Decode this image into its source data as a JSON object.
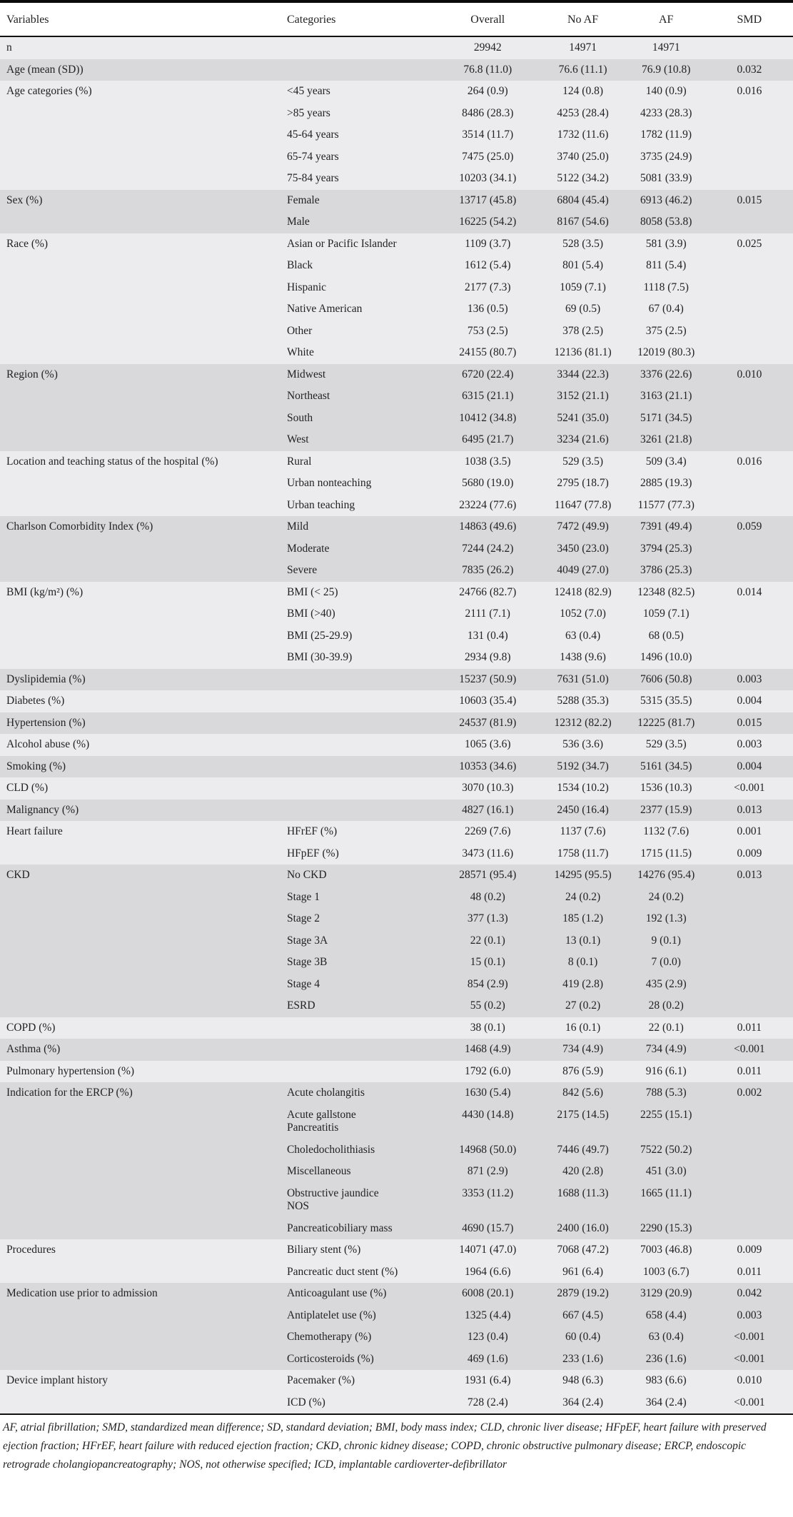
{
  "colors": {
    "row_light": "#ececee",
    "row_dark": "#d9d9db",
    "rule": "#111111",
    "text": "#222222"
  },
  "table": {
    "columns": [
      "Variables",
      "Categories",
      "Overall",
      "No AF",
      "AF",
      "SMD"
    ],
    "groups": [
      {
        "variable": "n",
        "rows": [
          {
            "category": "",
            "overall": "29942",
            "no_af": "14971",
            "af": "14971",
            "smd": ""
          }
        ]
      },
      {
        "variable": "Age (mean (SD))",
        "rows": [
          {
            "category": "",
            "overall": "76.8 (11.0)",
            "no_af": "76.6 (11.1)",
            "af": "76.9 (10.8)",
            "smd": "0.032"
          }
        ]
      },
      {
        "variable": "Age categories (%)",
        "rows": [
          {
            "category": "<45 years",
            "overall": "264 (0.9)",
            "no_af": "124 (0.8)",
            "af": "140 (0.9)",
            "smd": "0.016"
          },
          {
            "category": ">85 years",
            "overall": "8486 (28.3)",
            "no_af": "4253 (28.4)",
            "af": "4233 (28.3)",
            "smd": ""
          },
          {
            "category": "45-64 years",
            "overall": "3514 (11.7)",
            "no_af": "1732 (11.6)",
            "af": "1782 (11.9)",
            "smd": ""
          },
          {
            "category": "65-74 years",
            "overall": "7475 (25.0)",
            "no_af": "3740 (25.0)",
            "af": "3735 (24.9)",
            "smd": ""
          },
          {
            "category": "75-84 years",
            "overall": "10203 (34.1)",
            "no_af": "5122 (34.2)",
            "af": "5081 (33.9)",
            "smd": ""
          }
        ]
      },
      {
        "variable": "Sex (%)",
        "rows": [
          {
            "category": "Female",
            "overall": "13717 (45.8)",
            "no_af": "6804 (45.4)",
            "af": "6913 (46.2)",
            "smd": "0.015"
          },
          {
            "category": "Male",
            "overall": "16225 (54.2)",
            "no_af": "8167 (54.6)",
            "af": "8058 (53.8)",
            "smd": ""
          }
        ]
      },
      {
        "variable": "Race (%)",
        "rows": [
          {
            "category": "Asian or Pacific Islander",
            "overall": "1109 (3.7)",
            "no_af": "528 (3.5)",
            "af": "581 (3.9)",
            "smd": "0.025"
          },
          {
            "category": "Black",
            "overall": "1612 (5.4)",
            "no_af": "801 (5.4)",
            "af": "811 (5.4)",
            "smd": ""
          },
          {
            "category": "Hispanic",
            "overall": "2177 (7.3)",
            "no_af": "1059 (7.1)",
            "af": "1118 (7.5)",
            "smd": ""
          },
          {
            "category": "Native American",
            "overall": "136 (0.5)",
            "no_af": "69 (0.5)",
            "af": "67 (0.4)",
            "smd": ""
          },
          {
            "category": "Other",
            "overall": "753 (2.5)",
            "no_af": "378 (2.5)",
            "af": "375 (2.5)",
            "smd": ""
          },
          {
            "category": "White",
            "overall": "24155 (80.7)",
            "no_af": "12136 (81.1)",
            "af": "12019 (80.3)",
            "smd": ""
          }
        ]
      },
      {
        "variable": "Region (%)",
        "rows": [
          {
            "category": "Midwest",
            "overall": "6720 (22.4)",
            "no_af": "3344 (22.3)",
            "af": "3376 (22.6)",
            "smd": "0.010"
          },
          {
            "category": "Northeast",
            "overall": "6315 (21.1)",
            "no_af": "3152 (21.1)",
            "af": "3163 (21.1)",
            "smd": ""
          },
          {
            "category": "South",
            "overall": "10412 (34.8)",
            "no_af": "5241 (35.0)",
            "af": "5171 (34.5)",
            "smd": ""
          },
          {
            "category": "West",
            "overall": "6495 (21.7)",
            "no_af": "3234 (21.6)",
            "af": "3261 (21.8)",
            "smd": ""
          }
        ]
      },
      {
        "variable": "Location and teaching status of the hospital (%)",
        "rows": [
          {
            "category": "Rural",
            "overall": "1038 (3.5)",
            "no_af": "529 (3.5)",
            "af": "509 (3.4)",
            "smd": "0.016"
          },
          {
            "category": "Urban nonteaching",
            "overall": "5680 (19.0)",
            "no_af": "2795 (18.7)",
            "af": "2885 (19.3)",
            "smd": ""
          },
          {
            "category": "Urban teaching",
            "overall": "23224 (77.6)",
            "no_af": "11647 (77.8)",
            "af": "11577 (77.3)",
            "smd": ""
          }
        ]
      },
      {
        "variable": "Charlson Comorbidity Index (%)",
        "rows": [
          {
            "category": "Mild",
            "overall": "14863 (49.6)",
            "no_af": "7472 (49.9)",
            "af": "7391 (49.4)",
            "smd": "0.059"
          },
          {
            "category": "Moderate",
            "overall": "7244 (24.2)",
            "no_af": "3450 (23.0)",
            "af": "3794 (25.3)",
            "smd": ""
          },
          {
            "category": "Severe",
            "overall": "7835 (26.2)",
            "no_af": "4049 (27.0)",
            "af": "3786 (25.3)",
            "smd": ""
          }
        ]
      },
      {
        "variable": "BMI (kg/m²) (%)",
        "rows": [
          {
            "category": "BMI (< 25)",
            "overall": "24766 (82.7)",
            "no_af": "12418 (82.9)",
            "af": "12348 (82.5)",
            "smd": "0.014"
          },
          {
            "category": "BMI (>40)",
            "overall": "2111 (7.1)",
            "no_af": "1052 (7.0)",
            "af": "1059 (7.1)",
            "smd": ""
          },
          {
            "category": "BMI (25-29.9)",
            "overall": "131 (0.4)",
            "no_af": "63 (0.4)",
            "af": "68 (0.5)",
            "smd": ""
          },
          {
            "category": "BMI (30-39.9)",
            "overall": "2934 (9.8)",
            "no_af": "1438 (9.6)",
            "af": "1496 (10.0)",
            "smd": ""
          }
        ]
      },
      {
        "variable": "Dyslipidemia (%)",
        "rows": [
          {
            "category": "",
            "overall": "15237 (50.9)",
            "no_af": "7631 (51.0)",
            "af": "7606 (50.8)",
            "smd": "0.003"
          }
        ]
      },
      {
        "variable": "Diabetes (%)",
        "rows": [
          {
            "category": "",
            "overall": "10603 (35.4)",
            "no_af": "5288 (35.3)",
            "af": "5315 (35.5)",
            "smd": "0.004"
          }
        ]
      },
      {
        "variable": "Hypertension (%)",
        "rows": [
          {
            "category": "",
            "overall": "24537 (81.9)",
            "no_af": "12312 (82.2)",
            "af": "12225 (81.7)",
            "smd": "0.015"
          }
        ]
      },
      {
        "variable": "Alcohol abuse (%)",
        "rows": [
          {
            "category": "",
            "overall": "1065 (3.6)",
            "no_af": "536 (3.6)",
            "af": "529 (3.5)",
            "smd": "0.003"
          }
        ]
      },
      {
        "variable": "Smoking (%)",
        "rows": [
          {
            "category": "",
            "overall": "10353 (34.6)",
            "no_af": "5192 (34.7)",
            "af": "5161 (34.5)",
            "smd": "0.004"
          }
        ]
      },
      {
        "variable": "CLD (%)",
        "rows": [
          {
            "category": "",
            "overall": "3070 (10.3)",
            "no_af": "1534 (10.2)",
            "af": "1536 (10.3)",
            "smd": "<0.001"
          }
        ]
      },
      {
        "variable": "Malignancy (%)",
        "rows": [
          {
            "category": "",
            "overall": "4827 (16.1)",
            "no_af": "2450 (16.4)",
            "af": "2377 (15.9)",
            "smd": "0.013"
          }
        ]
      },
      {
        "variable": "Heart failure",
        "rows": [
          {
            "category": "HFrEF (%)",
            "overall": "2269 (7.6)",
            "no_af": "1137 (7.6)",
            "af": "1132 (7.6)",
            "smd": "0.001"
          },
          {
            "category": "HFpEF (%)",
            "overall": "3473 (11.6)",
            "no_af": "1758 (11.7)",
            "af": "1715 (11.5)",
            "smd": "0.009"
          }
        ]
      },
      {
        "variable": "CKD",
        "rows": [
          {
            "category": "No CKD",
            "overall": "28571 (95.4)",
            "no_af": "14295 (95.5)",
            "af": "14276 (95.4)",
            "smd": "0.013"
          },
          {
            "category": "Stage 1",
            "overall": "48 (0.2)",
            "no_af": "24 (0.2)",
            "af": "24 (0.2)",
            "smd": ""
          },
          {
            "category": "Stage 2",
            "overall": "377 (1.3)",
            "no_af": "185 (1.2)",
            "af": "192 (1.3)",
            "smd": ""
          },
          {
            "category": "Stage 3A",
            "overall": "22 (0.1)",
            "no_af": "13 (0.1)",
            "af": "9 (0.1)",
            "smd": ""
          },
          {
            "category": "Stage 3B",
            "overall": "15 (0.1)",
            "no_af": "8 (0.1)",
            "af": "7 (0.0)",
            "smd": ""
          },
          {
            "category": "Stage 4",
            "overall": "854 (2.9)",
            "no_af": "419 (2.8)",
            "af": "435 (2.9)",
            "smd": ""
          },
          {
            "category": "ESRD",
            "overall": "55 (0.2)",
            "no_af": "27 (0.2)",
            "af": "28 (0.2)",
            "smd": ""
          }
        ]
      },
      {
        "variable": "COPD (%)",
        "rows": [
          {
            "category": "",
            "overall": "38 (0.1)",
            "no_af": "16 (0.1)",
            "af": "22 (0.1)",
            "smd": "0.011"
          }
        ]
      },
      {
        "variable": "Asthma (%)",
        "rows": [
          {
            "category": "",
            "overall": "1468 (4.9)",
            "no_af": "734 (4.9)",
            "af": "734 (4.9)",
            "smd": "<0.001"
          }
        ]
      },
      {
        "variable": "Pulmonary hypertension (%)",
        "rows": [
          {
            "category": "",
            "overall": "1792 (6.0)",
            "no_af": "876 (5.9)",
            "af": "916 (6.1)",
            "smd": "0.011"
          }
        ]
      },
      {
        "variable": "Indication for the ERCP (%)",
        "rows": [
          {
            "category": "Acute cholangitis",
            "overall": "1630 (5.4)",
            "no_af": "842 (5.6)",
            "af": "788 (5.3)",
            "smd": "0.002"
          },
          {
            "category": "Acute gallstone\nPancreatitis",
            "overall": "4430 (14.8)",
            "no_af": "2175 (14.5)",
            "af": "2255 (15.1)",
            "smd": ""
          },
          {
            "category": "Choledocholithiasis",
            "overall": "14968 (50.0)",
            "no_af": "7446 (49.7)",
            "af": "7522 (50.2)",
            "smd": ""
          },
          {
            "category": "Miscellaneous",
            "overall": "871 (2.9)",
            "no_af": "420 (2.8)",
            "af": "451 (3.0)",
            "smd": ""
          },
          {
            "category": "Obstructive jaundice\nNOS",
            "overall": "3353 (11.2)",
            "no_af": "1688 (11.3)",
            "af": "1665 (11.1)",
            "smd": ""
          },
          {
            "category": "Pancreaticobiliary mass",
            "overall": "4690 (15.7)",
            "no_af": "2400 (16.0)",
            "af": "2290 (15.3)",
            "smd": ""
          }
        ]
      },
      {
        "variable": "Procedures",
        "rows": [
          {
            "category": "Biliary stent (%)",
            "overall": "14071 (47.0)",
            "no_af": "7068 (47.2)",
            "af": "7003 (46.8)",
            "smd": "0.009"
          },
          {
            "category": "Pancreatic duct stent (%)",
            "overall": "1964 (6.6)",
            "no_af": "961 (6.4)",
            "af": "1003 (6.7)",
            "smd": "0.011"
          }
        ]
      },
      {
        "variable": "Medication use prior to admission",
        "rows": [
          {
            "category": "Anticoagulant use (%)",
            "overall": "6008 (20.1)",
            "no_af": "2879 (19.2)",
            "af": "3129 (20.9)",
            "smd": "0.042"
          },
          {
            "category": "Antiplatelet use (%)",
            "overall": "1325 (4.4)",
            "no_af": "667 (4.5)",
            "af": "658 (4.4)",
            "smd": "0.003"
          },
          {
            "category": "Chemotherapy (%)",
            "overall": "123 (0.4)",
            "no_af": "60 (0.4)",
            "af": "63 (0.4)",
            "smd": "<0.001"
          },
          {
            "category": "Corticosteroids (%)",
            "overall": "469 (1.6)",
            "no_af": "233 (1.6)",
            "af": "236 (1.6)",
            "smd": "<0.001"
          }
        ]
      },
      {
        "variable": "Device implant history",
        "rows": [
          {
            "category": "Pacemaker (%)",
            "overall": "1931 (6.4)",
            "no_af": "948 (6.3)",
            "af": "983 (6.6)",
            "smd": "0.010"
          },
          {
            "category": "ICD (%)",
            "overall": "728 (2.4)",
            "no_af": "364 (2.4)",
            "af": "364 (2.4)",
            "smd": "<0.001"
          }
        ]
      }
    ]
  },
  "footnote": "AF, atrial fibrillation; SMD, standardized mean difference; SD, standard deviation; BMI, body mass index; CLD, chronic liver disease; HFpEF, heart failure with preserved ejection fraction; HFrEF, heart failure with reduced ejection fraction; CKD, chronic kidney disease; COPD, chronic obstructive pulmonary disease; ERCP, endoscopic retrograde cholangiopancreatography; NOS, not otherwise specified; ICD, implantable cardioverter-defibrillator"
}
